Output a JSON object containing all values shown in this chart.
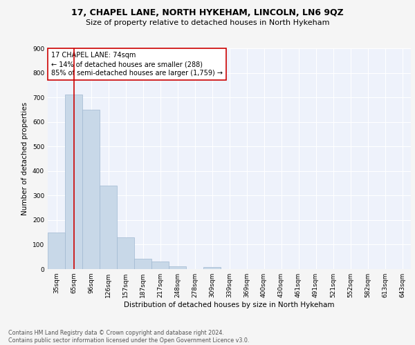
{
  "title1": "17, CHAPEL LANE, NORTH HYKEHAM, LINCOLN, LN6 9QZ",
  "title2": "Size of property relative to detached houses in North Hykeham",
  "xlabel": "Distribution of detached houses by size in North Hykeham",
  "ylabel": "Number of detached properties",
  "categories": [
    "35sqm",
    "65sqm",
    "96sqm",
    "126sqm",
    "157sqm",
    "187sqm",
    "217sqm",
    "248sqm",
    "278sqm",
    "309sqm",
    "339sqm",
    "369sqm",
    "400sqm",
    "430sqm",
    "461sqm",
    "491sqm",
    "521sqm",
    "552sqm",
    "582sqm",
    "613sqm",
    "643sqm"
  ],
  "values": [
    150,
    712,
    650,
    340,
    130,
    42,
    30,
    12,
    0,
    8,
    0,
    0,
    0,
    0,
    0,
    0,
    0,
    0,
    0,
    0,
    0
  ],
  "bar_color": "#c8d8e8",
  "bar_edge_color": "#a0b8d0",
  "vline_x": 1.0,
  "vline_color": "#cc0000",
  "annotation_text": "17 CHAPEL LANE: 74sqm\n← 14% of detached houses are smaller (288)\n85% of semi-detached houses are larger (1,759) →",
  "annotation_box_color": "#ffffff",
  "annotation_box_edge": "#cc0000",
  "ylim": [
    0,
    900
  ],
  "yticks": [
    0,
    100,
    200,
    300,
    400,
    500,
    600,
    700,
    800,
    900
  ],
  "background_color": "#eef2fb",
  "grid_color": "#ffffff",
  "footnote": "Contains HM Land Registry data © Crown copyright and database right 2024.\nContains public sector information licensed under the Open Government Licence v3.0.",
  "title1_fontsize": 9,
  "title2_fontsize": 8,
  "label_fontsize": 7.5,
  "tick_fontsize": 6.5,
  "annot_fontsize": 7,
  "fig_bg": "#f5f5f5"
}
